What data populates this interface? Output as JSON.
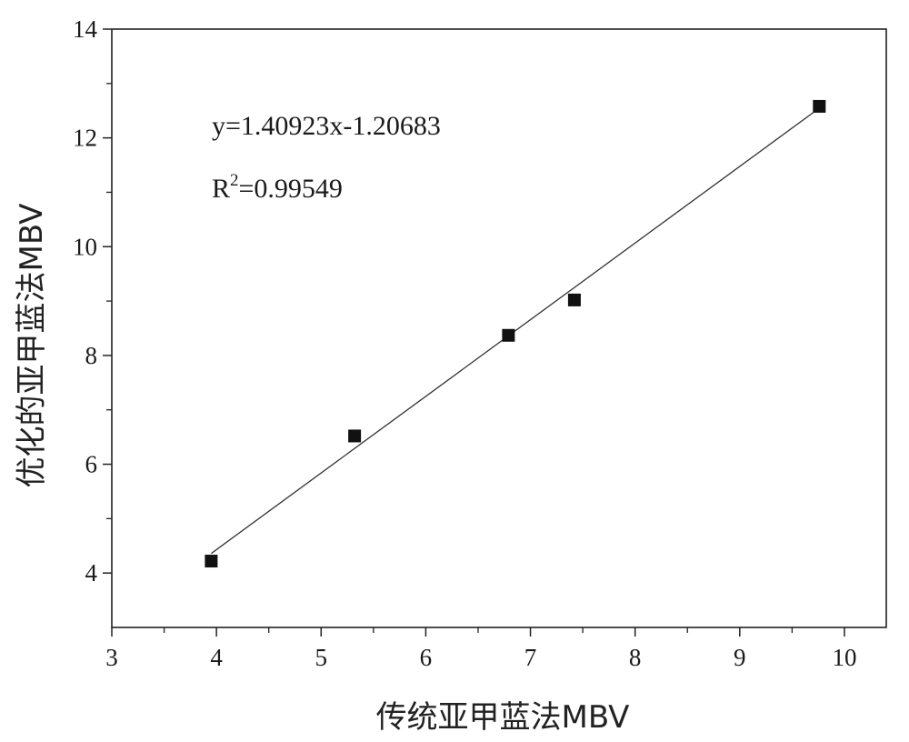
{
  "chart_data": {
    "type": "scatter",
    "title": "",
    "xlabel": "传统亚甲蓝法MBV",
    "ylabel": "优化的亚甲蓝法MBV",
    "xlim": [
      3,
      10.4
    ],
    "ylim": [
      3,
      14
    ],
    "xticks": [
      3,
      4,
      5,
      6,
      7,
      8,
      9,
      10
    ],
    "yticks": [
      4,
      6,
      8,
      10,
      12,
      14
    ],
    "grid": false,
    "legend": "none",
    "marker": "square",
    "color": "#111111",
    "points": [
      {
        "x": 3.95,
        "y": 4.22
      },
      {
        "x": 5.32,
        "y": 6.52
      },
      {
        "x": 6.79,
        "y": 8.37
      },
      {
        "x": 7.42,
        "y": 9.02
      },
      {
        "x": 9.76,
        "y": 12.58
      }
    ],
    "fit": {
      "slope": 1.40923,
      "intercept": -1.20683,
      "x_range": [
        3.95,
        9.76
      ]
    },
    "annotations": {
      "equation": "y=1.40923x-1.20683",
      "r2_prefix": "R",
      "r2_sup": "2",
      "r2_value": "=0.99549"
    }
  }
}
